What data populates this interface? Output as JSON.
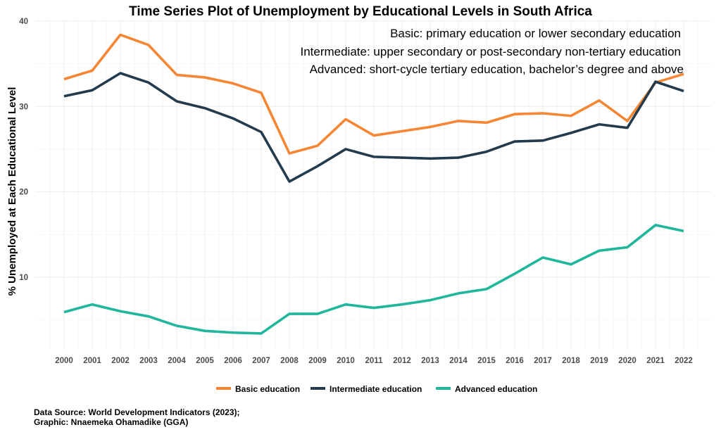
{
  "chart_data": {
    "type": "line",
    "title": "Time Series Plot of Unemployment by Educational Levels in South Africa",
    "notes": [
      "Basic: primary education or lower secondary education",
      "Intermediate: upper secondary or post-secondary non-tertiary education",
      "Advanced: short-cycle tertiary education, bachelor’s degree and above"
    ],
    "xlabel": "",
    "ylabel": "% Unemployed at Each Educational Level",
    "x": [
      "2000",
      "2001",
      "2002",
      "2003",
      "2004",
      "2005",
      "2006",
      "2007",
      "2008",
      "2009",
      "2010",
      "2011",
      "2012",
      "2013",
      "2014",
      "2015",
      "2016",
      "2017",
      "2018",
      "2019",
      "2020",
      "2021",
      "2022"
    ],
    "ylim": [
      1.5,
      40
    ],
    "yticks": [
      10,
      20,
      30,
      40
    ],
    "grid": true,
    "legend_position": "bottom",
    "series": [
      {
        "name": "Basic education",
        "color": "#f58634",
        "values": [
          33.2,
          34.2,
          38.4,
          37.2,
          33.7,
          33.4,
          32.7,
          31.6,
          24.5,
          25.4,
          28.5,
          26.6,
          27.1,
          27.6,
          28.3,
          28.1,
          29.1,
          29.2,
          28.9,
          30.7,
          28.3,
          32.8,
          33.8
        ]
      },
      {
        "name": "Intermediate education",
        "color": "#243b4e",
        "values": [
          31.2,
          31.9,
          33.9,
          32.8,
          30.6,
          29.8,
          28.6,
          27.0,
          21.2,
          23.0,
          25.0,
          24.1,
          24.0,
          23.9,
          24.0,
          24.7,
          25.9,
          26.0,
          26.9,
          27.9,
          27.5,
          32.9,
          31.8
        ]
      },
      {
        "name": "Advanced education",
        "color": "#1fb69b",
        "values": [
          5.9,
          6.8,
          6.0,
          5.4,
          4.3,
          3.7,
          3.5,
          3.4,
          5.7,
          5.7,
          6.8,
          6.4,
          6.8,
          7.3,
          8.1,
          8.6,
          10.4,
          12.3,
          11.5,
          13.1,
          13.5,
          16.1,
          15.4
        ]
      }
    ],
    "caption": [
      "Data Source: World Development Indicators (2023);",
      "Graphic: Nnaemeka Ohamadike (GGA)"
    ]
  }
}
